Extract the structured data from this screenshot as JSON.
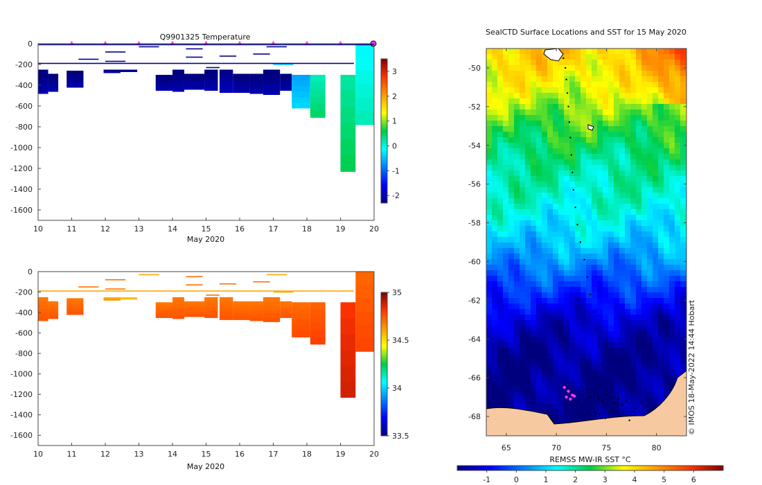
{
  "colors": {
    "land": "#f7c9a0",
    "frame": "#333333",
    "marker": "#ff33ff",
    "track": "#000000"
  },
  "chart_data": [
    {
      "id": "temperature",
      "type": "heatmap",
      "title": "Q9901325  Temperature",
      "xlabel": "May 2020",
      "ylabel": "",
      "xlim": [
        10,
        20
      ],
      "ylim": [
        -1700,
        0
      ],
      "xticks": [
        "10",
        "11",
        "12",
        "13",
        "14",
        "15",
        "16",
        "17",
        "18",
        "19",
        "20"
      ],
      "yticks": [
        "0",
        "-200",
        "-400",
        "-600",
        "-800",
        "-1000",
        "-1200",
        "-1400",
        "-1600"
      ],
      "colorbar": {
        "ticks": [
          "3",
          "2",
          "1",
          "0",
          "-1",
          "-2"
        ],
        "range": [
          -2.3,
          3.5
        ],
        "palette": "jet"
      },
      "surface_markers_x": [
        11,
        12,
        13,
        14,
        15,
        16,
        17,
        18,
        19
      ],
      "profiles": [
        {
          "x": 10.0,
          "w": 0.3,
          "top": -250,
          "bottom": -480,
          "value": -2.2
        },
        {
          "x": 10.3,
          "w": 0.3,
          "top": -290,
          "bottom": -460,
          "value": -2.2
        },
        {
          "x": 10.85,
          "w": 0.5,
          "top": -260,
          "bottom": -420,
          "value": -2.2
        },
        {
          "x": 11.95,
          "w": 0.5,
          "top": -250,
          "bottom": -280,
          "value": -2.2
        },
        {
          "x": 12.45,
          "w": 0.5,
          "top": -250,
          "bottom": -270,
          "value": -2.2
        },
        {
          "x": 13.5,
          "w": 0.5,
          "top": -300,
          "bottom": -450,
          "value": -2.2
        },
        {
          "x": 14.0,
          "w": 0.35,
          "top": -250,
          "bottom": -460,
          "value": -2.2
        },
        {
          "x": 14.35,
          "w": 0.6,
          "top": -290,
          "bottom": -440,
          "value": -2.2
        },
        {
          "x": 14.95,
          "w": 0.4,
          "top": -250,
          "bottom": -450,
          "value": -2.2
        },
        {
          "x": 15.4,
          "w": 0.4,
          "top": -250,
          "bottom": -470,
          "value": -2.1
        },
        {
          "x": 15.8,
          "w": 0.5,
          "top": -290,
          "bottom": -470,
          "value": -2.2
        },
        {
          "x": 16.3,
          "w": 0.4,
          "top": -290,
          "bottom": -480,
          "value": -2.2
        },
        {
          "x": 16.7,
          "w": 0.5,
          "top": -250,
          "bottom": -490,
          "value": -2.2
        },
        {
          "x": 17.2,
          "w": 0.35,
          "top": -290,
          "bottom": -450,
          "value": -2.2
        },
        {
          "x": 17.55,
          "w": 0.55,
          "top": -300,
          "bottom": -620,
          "value": -0.5
        },
        {
          "x": 18.1,
          "w": 0.45,
          "top": -300,
          "bottom": -710,
          "value": 0.3
        },
        {
          "x": 19.0,
          "w": 0.45,
          "top": -300,
          "bottom": -1230,
          "value": 0.4
        },
        {
          "x": 19.45,
          "w": 0.55,
          "top": 0,
          "bottom": -780,
          "value": 0.0
        }
      ],
      "near_surface_lines": [
        {
          "x": 11.2,
          "w": 0.6,
          "depth": -150,
          "value": -2.2
        },
        {
          "x": 12.0,
          "w": 0.6,
          "depth": -80,
          "value": -2.2
        },
        {
          "x": 12.0,
          "w": 0.6,
          "depth": -170,
          "value": -2.2
        },
        {
          "x": 13.0,
          "w": 0.6,
          "depth": -30,
          "value": -2.2
        },
        {
          "x": 14.4,
          "w": 0.5,
          "depth": -50,
          "value": -2.2
        },
        {
          "x": 14.4,
          "w": 0.5,
          "depth": -130,
          "value": -2.2
        },
        {
          "x": 15.0,
          "w": 0.4,
          "depth": -230,
          "value": -2.2
        },
        {
          "x": 15.4,
          "w": 0.5,
          "depth": -120,
          "value": -2.2
        },
        {
          "x": 16.4,
          "w": 0.5,
          "depth": -100,
          "value": -2.2
        },
        {
          "x": 16.8,
          "w": 0.6,
          "depth": -30,
          "value": -2.2
        },
        {
          "x": 10.0,
          "w": 9.4,
          "depth": -190,
          "value": -2.2
        },
        {
          "x": 17.0,
          "w": 0.6,
          "depth": -200,
          "value": -0.5
        }
      ]
    },
    {
      "id": "salinity",
      "type": "heatmap",
      "title": "",
      "xlabel": "May 2020",
      "ylabel": "",
      "xlim": [
        10,
        20
      ],
      "ylim": [
        -1700,
        0
      ],
      "xticks": [
        "10",
        "11",
        "12",
        "13",
        "14",
        "15",
        "16",
        "17",
        "18",
        "19",
        "20"
      ],
      "yticks": [
        "0",
        "-200",
        "-400",
        "-600",
        "-800",
        "-1000",
        "-1200",
        "-1400",
        "-1600"
      ],
      "colorbar": {
        "ticks": [
          "35",
          "34.5",
          "34",
          "33.5"
        ],
        "range": [
          33.5,
          35.0
        ],
        "palette": "jet"
      },
      "profiles": [
        {
          "x": 10.0,
          "w": 0.3,
          "top": -250,
          "bottom": -480,
          "value": 34.72
        },
        {
          "x": 10.3,
          "w": 0.3,
          "top": -290,
          "bottom": -460,
          "value": 34.72
        },
        {
          "x": 10.85,
          "w": 0.5,
          "top": -260,
          "bottom": -420,
          "value": 34.72
        },
        {
          "x": 11.95,
          "w": 0.5,
          "top": -250,
          "bottom": -280,
          "value": 34.6
        },
        {
          "x": 12.45,
          "w": 0.5,
          "top": -250,
          "bottom": -270,
          "value": 34.55
        },
        {
          "x": 13.5,
          "w": 0.5,
          "top": -300,
          "bottom": -450,
          "value": 34.72
        },
        {
          "x": 14.0,
          "w": 0.35,
          "top": -250,
          "bottom": -460,
          "value": 34.72
        },
        {
          "x": 14.35,
          "w": 0.6,
          "top": -290,
          "bottom": -440,
          "value": 34.72
        },
        {
          "x": 14.95,
          "w": 0.4,
          "top": -250,
          "bottom": -450,
          "value": 34.72
        },
        {
          "x": 15.4,
          "w": 0.4,
          "top": -250,
          "bottom": -470,
          "value": 34.72
        },
        {
          "x": 15.8,
          "w": 0.5,
          "top": -290,
          "bottom": -470,
          "value": 34.72
        },
        {
          "x": 16.3,
          "w": 0.4,
          "top": -290,
          "bottom": -480,
          "value": 34.72
        },
        {
          "x": 16.7,
          "w": 0.5,
          "top": -250,
          "bottom": -490,
          "value": 34.72
        },
        {
          "x": 17.2,
          "w": 0.35,
          "top": -290,
          "bottom": -450,
          "value": 34.72
        },
        {
          "x": 17.55,
          "w": 0.55,
          "top": -300,
          "bottom": -640,
          "value": 34.74
        },
        {
          "x": 18.1,
          "w": 0.45,
          "top": -300,
          "bottom": -710,
          "value": 34.76
        },
        {
          "x": 19.0,
          "w": 0.45,
          "top": -300,
          "bottom": -1230,
          "value": 34.85
        },
        {
          "x": 19.45,
          "w": 0.55,
          "top": 0,
          "bottom": -780,
          "value": 34.75
        }
      ],
      "near_surface_lines": [
        {
          "x": 11.2,
          "w": 0.6,
          "depth": -150,
          "value": 34.7
        },
        {
          "x": 12.0,
          "w": 0.6,
          "depth": -80,
          "value": 34.7
        },
        {
          "x": 12.0,
          "w": 0.6,
          "depth": -170,
          "value": 34.7
        },
        {
          "x": 13.0,
          "w": 0.6,
          "depth": -30,
          "value": 34.6
        },
        {
          "x": 14.4,
          "w": 0.5,
          "depth": -50,
          "value": 34.7
        },
        {
          "x": 14.4,
          "w": 0.5,
          "depth": -130,
          "value": 34.7
        },
        {
          "x": 15.0,
          "w": 0.4,
          "depth": -230,
          "value": 34.7
        },
        {
          "x": 15.4,
          "w": 0.5,
          "depth": -120,
          "value": 34.7
        },
        {
          "x": 16.4,
          "w": 0.5,
          "depth": -100,
          "value": 34.7
        },
        {
          "x": 16.8,
          "w": 0.6,
          "depth": -30,
          "value": 34.6
        },
        {
          "x": 10.0,
          "w": 9.4,
          "depth": -190,
          "value": 34.6
        },
        {
          "x": 17.0,
          "w": 0.6,
          "depth": -200,
          "value": 34.6
        }
      ]
    },
    {
      "id": "sst-map",
      "type": "heatmap",
      "title": "SealCTD Surface Locations and SST for 15 May 2020",
      "xlabel": "",
      "ylabel": "",
      "xlim": [
        63,
        83
      ],
      "ylim": [
        -69,
        -49
      ],
      "xticks": [
        "65",
        "70",
        "75",
        "80"
      ],
      "yticks": [
        "-50",
        "-52",
        "-54",
        "-56",
        "-58",
        "-60",
        "-62",
        "-64",
        "-66",
        "-68"
      ],
      "colorbar": {
        "label": "REMSS MW-IR SST °C",
        "ticks": [
          "-1",
          "0",
          "1",
          "2",
          "3",
          "4",
          "5",
          "6"
        ],
        "range": [
          -2,
          7
        ],
        "palette": "jet"
      },
      "sst_field": {
        "lat": [
          -49,
          -51,
          -53,
          -55,
          -57,
          -59,
          -61,
          -63,
          -65,
          -67,
          -69
        ],
        "sst": [
          4.2,
          3.6,
          2.7,
          2.0,
          1.6,
          0.9,
          -0.2,
          -1.3,
          -1.8,
          -1.9,
          -1.9
        ]
      },
      "track_lon": [
        70.7,
        70.9,
        71.0,
        71.1,
        71.2,
        71.3,
        71.4,
        71.5,
        71.6,
        71.7,
        71.9,
        72.1,
        72.4,
        72.8,
        73.1,
        73.4,
        73.7,
        74.0,
        74.3,
        74.6
      ],
      "track_lat": [
        -49.5,
        -50.0,
        -50.6,
        -51.3,
        -52.0,
        -52.8,
        -53.6,
        -54.5,
        -55.4,
        -56.3,
        -57.2,
        -58.1,
        -59.0,
        -59.9,
        -60.8,
        -61.7,
        -62.6,
        -63.5,
        -64.4,
        -65.3
      ],
      "cluster_lon": [
        72.2,
        72.6,
        73.0,
        73.4,
        73.8,
        74.2,
        74.6,
        75.0,
        75.4,
        75.8,
        76.2,
        76.6,
        77.0,
        72.5,
        73.1,
        73.7,
        74.3,
        74.9,
        75.5,
        76.1,
        76.7,
        77.3,
        77.9,
        78.5
      ],
      "cluster_lat": [
        -66.7,
        -66.9,
        -66.6,
        -67.0,
        -66.8,
        -67.1,
        -67.2,
        -66.9,
        -67.0,
        -67.3,
        -67.1,
        -67.4,
        -67.2,
        -67.5,
        -67.8,
        -67.6,
        -67.9,
        -68.1,
        -67.7,
        -68.0,
        -67.8,
        -68.2,
        -67.6,
        -67.3
      ],
      "recent_lon": [
        70.8,
        71.2,
        71.6,
        71.0,
        71.4,
        71.8
      ],
      "recent_lat": [
        -66.5,
        -66.7,
        -66.9,
        -67.0,
        -67.1,
        -66.95
      ],
      "land_label": "",
      "credit": "© IMOS 18-May-2022 14:44 Hobart"
    }
  ]
}
